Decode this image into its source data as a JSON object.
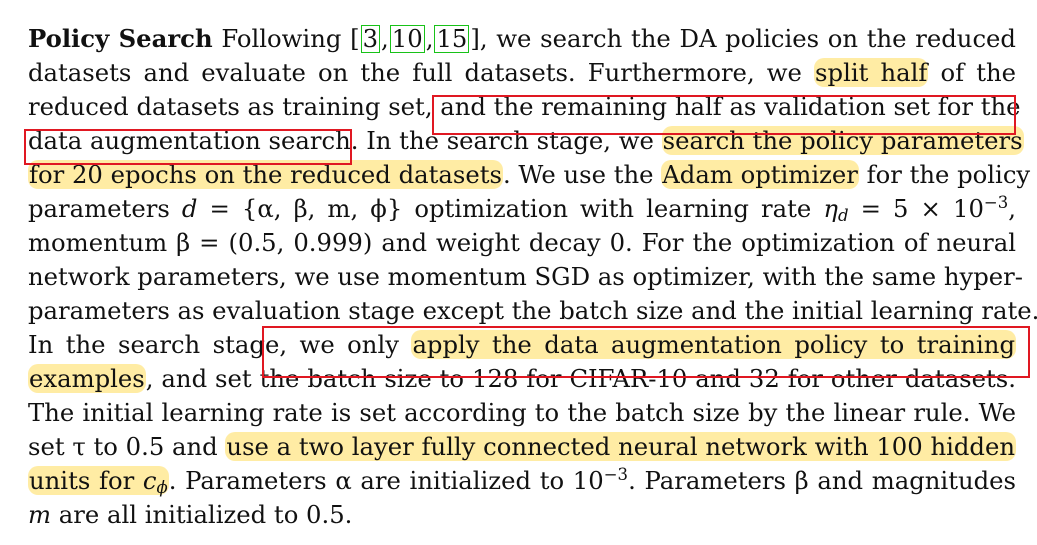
{
  "paragraph": {
    "heading": "Policy Search",
    "l1_after_heading": "Following [",
    "cite1": "3",
    "cite2": "10",
    "cite3": "15",
    "l1_tail": "], we search the DA policies on the reduced",
    "l2_a": "datasets and evaluate on the full datasets. Furthermore, we ",
    "l2_hl": "split half",
    "l2_b": " of the",
    "l3_a": "reduced datasets as training set, ",
    "l3_box": "and the remaining half as validation set for the",
    "l4_box": "data augmentation search",
    "l4_b": ". In the search stage, we ",
    "l4_hl": "search the policy parameters",
    "l5_hl": "for 20 epochs on the reduced datasets",
    "l5_b": ". We use the ",
    "l5_hl2": "Adam optimizer",
    "l5_c": " for the policy",
    "l6_a": "parameters ",
    "l6_d": "d",
    "l6_b": " = {α, β, m, ϕ} optimization with learning rate ",
    "l6_eta": "η",
    "l6_eta_sub": "d",
    "l6_c": " = 5 × 10",
    "l6_exp": "−3",
    "l6_d2": ",",
    "l7": "momentum β = (0.5, 0.999) and weight decay 0. For the optimization of neural",
    "l8": "network parameters, we use momentum SGD as optimizer, with the same hyper-",
    "l9": "parameters as evaluation stage except the batch size and the initial learning rate.",
    "l10_a": "In the search stage, we only ",
    "l10_hl": "apply the data augmentation policy to training",
    "l11_hl": "examples",
    "l11_b": ", and set the batch size to 128 for CIFAR-10 and 32 for other datasets.",
    "l12": "The initial learning rate is set according to the batch size by the linear rule. We",
    "l13_a": "set τ to 0.5 and ",
    "l13_hl": "use a two layer fully connected neural network with 100 hidden",
    "l14_hl": "units for ",
    "l14_c": "c",
    "l14_sub": "ϕ",
    "l14_b": ". Parameters α are initialized to 10",
    "l14_exp": "−3",
    "l14_c2": ". Parameters β and magnitudes",
    "l15_m": "m",
    "l15_b": " are all initialized to 0.5."
  },
  "colors": {
    "highlight": "#ffe066",
    "annotation_box": "#e01822",
    "citation_box": "#18c218"
  }
}
